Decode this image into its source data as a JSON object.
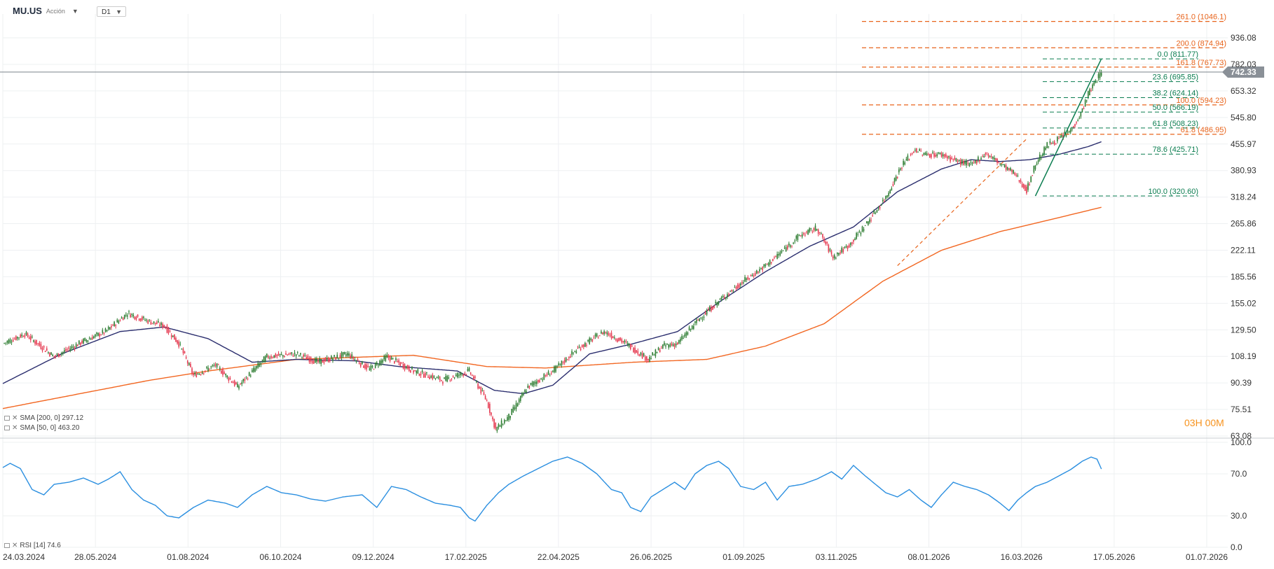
{
  "header": {
    "symbol": "MU.US",
    "asset_type": "Acción",
    "timeframe": "D1"
  },
  "timer": {
    "hours": "03",
    "h_label": "H",
    "minutes": "00",
    "m_label": "M"
  },
  "indicators": {
    "sma200_label": "SMA [200, 0] 297.12",
    "sma50_label": "SMA [50, 0] 463.20",
    "rsi_label": "RSI [14] 74.6"
  },
  "colors": {
    "up": "#2e7d32",
    "down": "#e53950",
    "sma200": "#f26722",
    "sma50": "#2b2e6e",
    "fib_green": "#0b7d50",
    "fib_orange": "#e8641c",
    "rsi": "#2b8fe0",
    "price_tag": "#8a9097"
  },
  "chart_data": [
    {
      "type": "candlestick",
      "scale": "log",
      "ylim": [
        63.08,
        1100
      ],
      "y_ticks": [
        936.08,
        782.03,
        653.32,
        545.8,
        455.97,
        380.93,
        318.24,
        265.86,
        222.11,
        185.56,
        155.02,
        129.5,
        108.19,
        90.39,
        75.51,
        63.08
      ],
      "x_ticks": [
        "24.03.2024",
        "28.05.2024",
        "01.08.2024",
        "06.10.2024",
        "09.12.2024",
        "17.02.2025",
        "22.04.2025",
        "26.06.2025",
        "01.09.2025",
        "03.11.2025",
        "08.01.2026",
        "16.03.2026",
        "17.05.2026",
        "01.07.2026"
      ],
      "current_price": 742.33,
      "close_path": [
        [
          0,
          118
        ],
        [
          15,
          126
        ],
        [
          35,
          108
        ],
        [
          55,
          120
        ],
        [
          70,
          128
        ],
        [
          85,
          145
        ],
        [
          100,
          137
        ],
        [
          110,
          133
        ],
        [
          120,
          118
        ],
        [
          130,
          95
        ],
        [
          145,
          102
        ],
        [
          160,
          88
        ],
        [
          180,
          108
        ],
        [
          200,
          110
        ],
        [
          215,
          104
        ],
        [
          235,
          110
        ],
        [
          250,
          99
        ],
        [
          262,
          108
        ],
        [
          280,
          98
        ],
        [
          300,
          92
        ],
        [
          318,
          98
        ],
        [
          330,
          80
        ],
        [
          336,
          66
        ],
        [
          345,
          72
        ],
        [
          358,
          88
        ],
        [
          375,
          98
        ],
        [
          392,
          114
        ],
        [
          410,
          128
        ],
        [
          425,
          118
        ],
        [
          440,
          106
        ],
        [
          450,
          116
        ],
        [
          460,
          118
        ],
        [
          475,
          140
        ],
        [
          490,
          160
        ],
        [
          505,
          180
        ],
        [
          520,
          200
        ],
        [
          530,
          218
        ],
        [
          543,
          245
        ],
        [
          555,
          258
        ],
        [
          566,
          212
        ],
        [
          577,
          230
        ],
        [
          590,
          270
        ],
        [
          602,
          318
        ],
        [
          613,
          395
        ],
        [
          622,
          440
        ],
        [
          628,
          425
        ],
        [
          640,
          425
        ],
        [
          648,
          410
        ],
        [
          660,
          395
        ],
        [
          670,
          428
        ],
        [
          678,
          405
        ],
        [
          690,
          372
        ],
        [
          698,
          333
        ],
        [
          704,
          398
        ],
        [
          712,
          452
        ],
        [
          720,
          472
        ],
        [
          728,
          500
        ],
        [
          735,
          560
        ],
        [
          740,
          640
        ],
        [
          745,
          700
        ],
        [
          749,
          742
        ]
      ],
      "sma200": {
        "name": "SMA [200, 0]",
        "path": [
          [
            0,
            76
          ],
          [
            100,
            92
          ],
          [
            140,
            98
          ],
          [
            200,
            106
          ],
          [
            280,
            109
          ],
          [
            330,
            101
          ],
          [
            370,
            100
          ],
          [
            430,
            104
          ],
          [
            480,
            106
          ],
          [
            520,
            116
          ],
          [
            560,
            135
          ],
          [
            600,
            180
          ],
          [
            640,
            222
          ],
          [
            680,
            252
          ],
          [
            720,
            277
          ],
          [
            749,
            297
          ]
        ]
      },
      "sma50": {
        "name": "SMA [50, 0]",
        "path": [
          [
            0,
            90
          ],
          [
            40,
            110
          ],
          [
            80,
            128
          ],
          [
            110,
            132
          ],
          [
            140,
            122
          ],
          [
            170,
            104
          ],
          [
            200,
            106
          ],
          [
            240,
            105
          ],
          [
            270,
            101
          ],
          [
            310,
            98
          ],
          [
            335,
            86
          ],
          [
            355,
            84
          ],
          [
            375,
            89
          ],
          [
            400,
            110
          ],
          [
            430,
            118
          ],
          [
            460,
            128
          ],
          [
            490,
            158
          ],
          [
            520,
            192
          ],
          [
            550,
            228
          ],
          [
            580,
            260
          ],
          [
            610,
            330
          ],
          [
            640,
            385
          ],
          [
            660,
            410
          ],
          [
            680,
            405
          ],
          [
            700,
            410
          ],
          [
            720,
            425
          ],
          [
            740,
            448
          ],
          [
            749,
            463
          ]
        ]
      }
    },
    {
      "type": "line",
      "name": "RSI [14]",
      "ylim": [
        0,
        100
      ],
      "y_ticks": [
        100.0,
        70.0,
        30.0,
        0.0
      ],
      "path": [
        [
          0,
          76
        ],
        [
          5,
          80
        ],
        [
          12,
          75
        ],
        [
          20,
          55
        ],
        [
          28,
          50
        ],
        [
          35,
          60
        ],
        [
          45,
          62
        ],
        [
          55,
          66
        ],
        [
          65,
          60
        ],
        [
          72,
          65
        ],
        [
          80,
          72
        ],
        [
          88,
          55
        ],
        [
          96,
          45
        ],
        [
          104,
          40
        ],
        [
          112,
          30
        ],
        [
          120,
          28
        ],
        [
          130,
          38
        ],
        [
          140,
          45
        ],
        [
          152,
          42
        ],
        [
          160,
          38
        ],
        [
          170,
          50
        ],
        [
          180,
          58
        ],
        [
          190,
          52
        ],
        [
          200,
          50
        ],
        [
          210,
          46
        ],
        [
          220,
          44
        ],
        [
          232,
          48
        ],
        [
          245,
          50
        ],
        [
          255,
          38
        ],
        [
          265,
          58
        ],
        [
          275,
          55
        ],
        [
          285,
          48
        ],
        [
          295,
          42
        ],
        [
          305,
          40
        ],
        [
          312,
          38
        ],
        [
          318,
          28
        ],
        [
          322,
          25
        ],
        [
          330,
          40
        ],
        [
          338,
          52
        ],
        [
          345,
          60
        ],
        [
          355,
          68
        ],
        [
          365,
          75
        ],
        [
          375,
          82
        ],
        [
          385,
          86
        ],
        [
          395,
          80
        ],
        [
          405,
          70
        ],
        [
          415,
          55
        ],
        [
          422,
          52
        ],
        [
          428,
          38
        ],
        [
          435,
          34
        ],
        [
          442,
          48
        ],
        [
          450,
          55
        ],
        [
          458,
          62
        ],
        [
          465,
          55
        ],
        [
          472,
          70
        ],
        [
          480,
          78
        ],
        [
          488,
          82
        ],
        [
          495,
          75
        ],
        [
          503,
          58
        ],
        [
          512,
          55
        ],
        [
          520,
          62
        ],
        [
          528,
          45
        ],
        [
          536,
          58
        ],
        [
          545,
          60
        ],
        [
          555,
          65
        ],
        [
          565,
          72
        ],
        [
          572,
          65
        ],
        [
          580,
          78
        ],
        [
          588,
          68
        ],
        [
          595,
          60
        ],
        [
          602,
          52
        ],
        [
          610,
          48
        ],
        [
          618,
          55
        ],
        [
          626,
          45
        ],
        [
          633,
          38
        ],
        [
          640,
          50
        ],
        [
          648,
          62
        ],
        [
          656,
          58
        ],
        [
          664,
          55
        ],
        [
          672,
          50
        ],
        [
          680,
          42
        ],
        [
          686,
          35
        ],
        [
          692,
          45
        ],
        [
          698,
          52
        ],
        [
          704,
          58
        ],
        [
          712,
          62
        ],
        [
          720,
          68
        ],
        [
          728,
          74
        ],
        [
          736,
          82
        ],
        [
          742,
          86
        ],
        [
          746,
          84
        ],
        [
          749,
          74.6
        ]
      ]
    },
    {
      "type": "fibonacci",
      "retracement": {
        "levels": [
          {
            "ratio": "0.0",
            "price": 811.77
          },
          {
            "ratio": "23.6",
            "price": 695.85
          },
          {
            "ratio": "38.2",
            "price": 624.14
          },
          {
            "ratio": "50.0",
            "price": 566.19
          },
          {
            "ratio": "61.8",
            "price": 508.23
          },
          {
            "ratio": "78.6",
            "price": 425.71
          },
          {
            "ratio": "100.0",
            "price": 320.6
          }
        ]
      },
      "extension": {
        "levels": [
          {
            "ratio": "261.0",
            "price": 1046.1
          },
          {
            "ratio": "200.0",
            "price": 874.94
          },
          {
            "ratio": "161.8",
            "price": 767.73
          },
          {
            "ratio": "100.0",
            "price": 594.23
          },
          {
            "ratio": "61.8",
            "price": 486.95
          }
        ]
      }
    }
  ]
}
